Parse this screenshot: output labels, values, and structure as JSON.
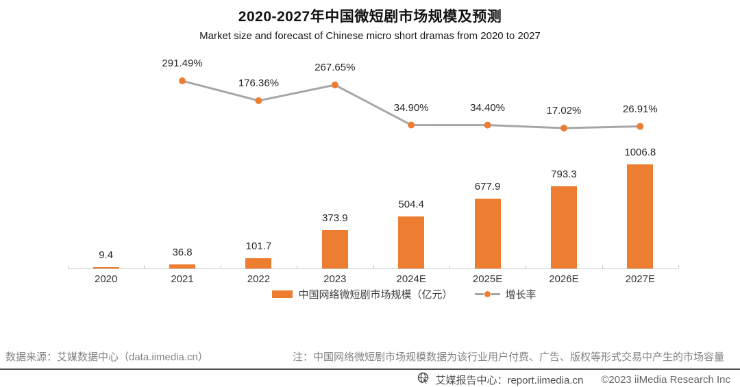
{
  "title": "2020-2027年中国微短剧市场规模及预测",
  "subtitle": "Market size and forecast of Chinese micro short dramas from 2020 to 2027",
  "chart_data": {
    "type": "bar",
    "subtype": "bar-line-combo",
    "categories": [
      "2020",
      "2021",
      "2022",
      "2023",
      "2024E",
      "2025E",
      "2026E",
      "2027E"
    ],
    "series": [
      {
        "name": "中国网络微短剧市场规模（亿元）",
        "type": "bar",
        "color": "#ED7D31",
        "values": [
          9.4,
          36.8,
          101.7,
          373.9,
          504.4,
          677.9,
          793.3,
          1006.8
        ],
        "labels": [
          "9.4",
          "36.8",
          "101.7",
          "373.9",
          "504.4",
          "677.9",
          "793.3",
          "1006.8"
        ]
      },
      {
        "name": "增长率",
        "type": "line",
        "color": "#A6A6A6",
        "marker_color": "#ED7D31",
        "values": [
          null,
          291.49,
          176.36,
          267.65,
          34.9,
          34.4,
          17.02,
          26.91
        ],
        "labels": [
          "",
          "291.49%",
          "176.36%",
          "267.65%",
          "34.90%",
          "34.40%",
          "17.02%",
          "26.91%"
        ]
      }
    ],
    "title": "2020-2027年中国微短剧市场规模及预测",
    "xlabel": "",
    "ylabel": "",
    "ylim": [
      0,
      1100
    ],
    "y2lim": [
      0,
      380
    ],
    "grid": false,
    "axes_labels_hidden": true,
    "legend_position": "bottom"
  },
  "legend": {
    "bar_label": "中国网络微短剧市场规模（亿元）",
    "line_label": "增长率"
  },
  "footer": {
    "source": "数据来源：艾媒数据中心（data.iimedia.cn）",
    "note": "注：中国网络微短剧市场规模数据为该行业用户付费、广告、版权等形式交易中产生的市场容量"
  },
  "bottom_bar": {
    "report_center": "艾媒报告中心：report.iimedia.cn",
    "copyright": "©2023  iiMedia Research Inc"
  },
  "colors": {
    "bar": "#ED7D31",
    "line": "#A6A6A6",
    "marker": "#ED7D31",
    "axis": "#c9c9c9",
    "divider": "#4d4d4d",
    "footer_text": "#828282"
  }
}
